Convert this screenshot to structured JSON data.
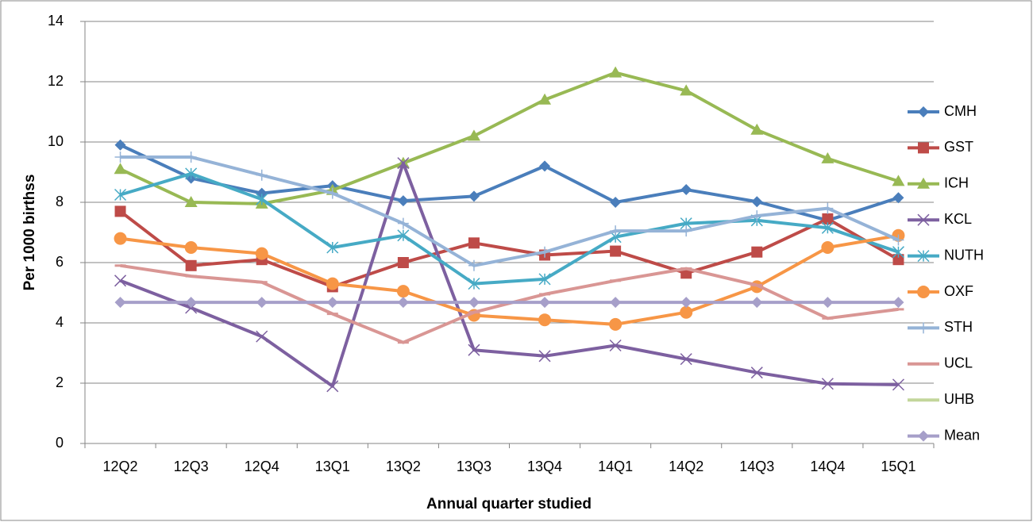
{
  "chart_data": {
    "type": "line",
    "y_label": "Per 1000 birthss",
    "x_label": "Annual quarter studied",
    "categories": [
      "12Q2",
      "12Q3",
      "12Q4",
      "13Q1",
      "13Q2",
      "13Q3",
      "13Q4",
      "14Q1",
      "14Q2",
      "14Q3",
      "14Q4",
      "15Q1"
    ],
    "ylim": [
      0,
      14
    ],
    "yticks": [
      0,
      2,
      4,
      6,
      8,
      10,
      12,
      14
    ],
    "grid": true,
    "legend": "right",
    "series": [
      {
        "name": "CMH",
        "color": "#4a7ebb",
        "marker": "diamond",
        "values": [
          9.9,
          8.8,
          8.3,
          8.55,
          8.05,
          8.2,
          9.2,
          8.0,
          8.42,
          8.02,
          7.4,
          8.15
        ]
      },
      {
        "name": "GST",
        "color": "#be4b48",
        "marker": "square",
        "values": [
          7.7,
          5.9,
          6.1,
          5.2,
          6.0,
          6.65,
          6.25,
          6.38,
          5.65,
          6.35,
          7.45,
          6.1
        ]
      },
      {
        "name": "ICH",
        "color": "#98b954",
        "marker": "triangle",
        "values": [
          9.1,
          8.0,
          7.95,
          8.4,
          9.3,
          10.2,
          11.4,
          12.3,
          11.7,
          10.4,
          9.45,
          8.7
        ]
      },
      {
        "name": "KCL",
        "color": "#7d60a0",
        "marker": "x",
        "values": [
          5.4,
          4.5,
          3.55,
          1.9,
          9.3,
          3.1,
          2.9,
          3.25,
          2.8,
          2.35,
          1.98,
          1.95
        ]
      },
      {
        "name": "NUTH",
        "color": "#46aac5",
        "marker": "star",
        "values": [
          8.25,
          8.95,
          8.1,
          6.5,
          6.9,
          5.3,
          5.45,
          6.85,
          7.3,
          7.4,
          7.15,
          6.35
        ]
      },
      {
        "name": "OXF",
        "color": "#f79646",
        "marker": "circle",
        "values": [
          6.8,
          6.5,
          6.3,
          5.3,
          5.05,
          4.25,
          4.1,
          3.95,
          4.35,
          5.2,
          6.5,
          6.9
        ]
      },
      {
        "name": "STH",
        "color": "#95b3d7",
        "marker": "plus",
        "values": [
          9.5,
          9.5,
          8.9,
          8.3,
          7.3,
          5.9,
          6.35,
          7.05,
          7.05,
          7.55,
          7.8,
          6.75
        ]
      },
      {
        "name": "UCL",
        "color": "#d99694",
        "marker": "dash",
        "values": [
          5.9,
          5.55,
          5.35,
          4.3,
          3.35,
          4.35,
          4.95,
          5.4,
          5.8,
          5.25,
          4.15,
          4.45
        ]
      },
      {
        "name": "UHB",
        "color": "#c3d69b",
        "marker": "none",
        "values": [
          null,
          null,
          null,
          null,
          null,
          null,
          null,
          null,
          null,
          null,
          null,
          null
        ]
      },
      {
        "name": "Mean",
        "color": "#a69fc9",
        "marker": "diamond",
        "values": [
          4.68,
          4.68,
          4.68,
          4.68,
          4.68,
          4.68,
          4.68,
          4.68,
          4.68,
          4.68,
          4.68,
          4.68
        ]
      }
    ]
  }
}
